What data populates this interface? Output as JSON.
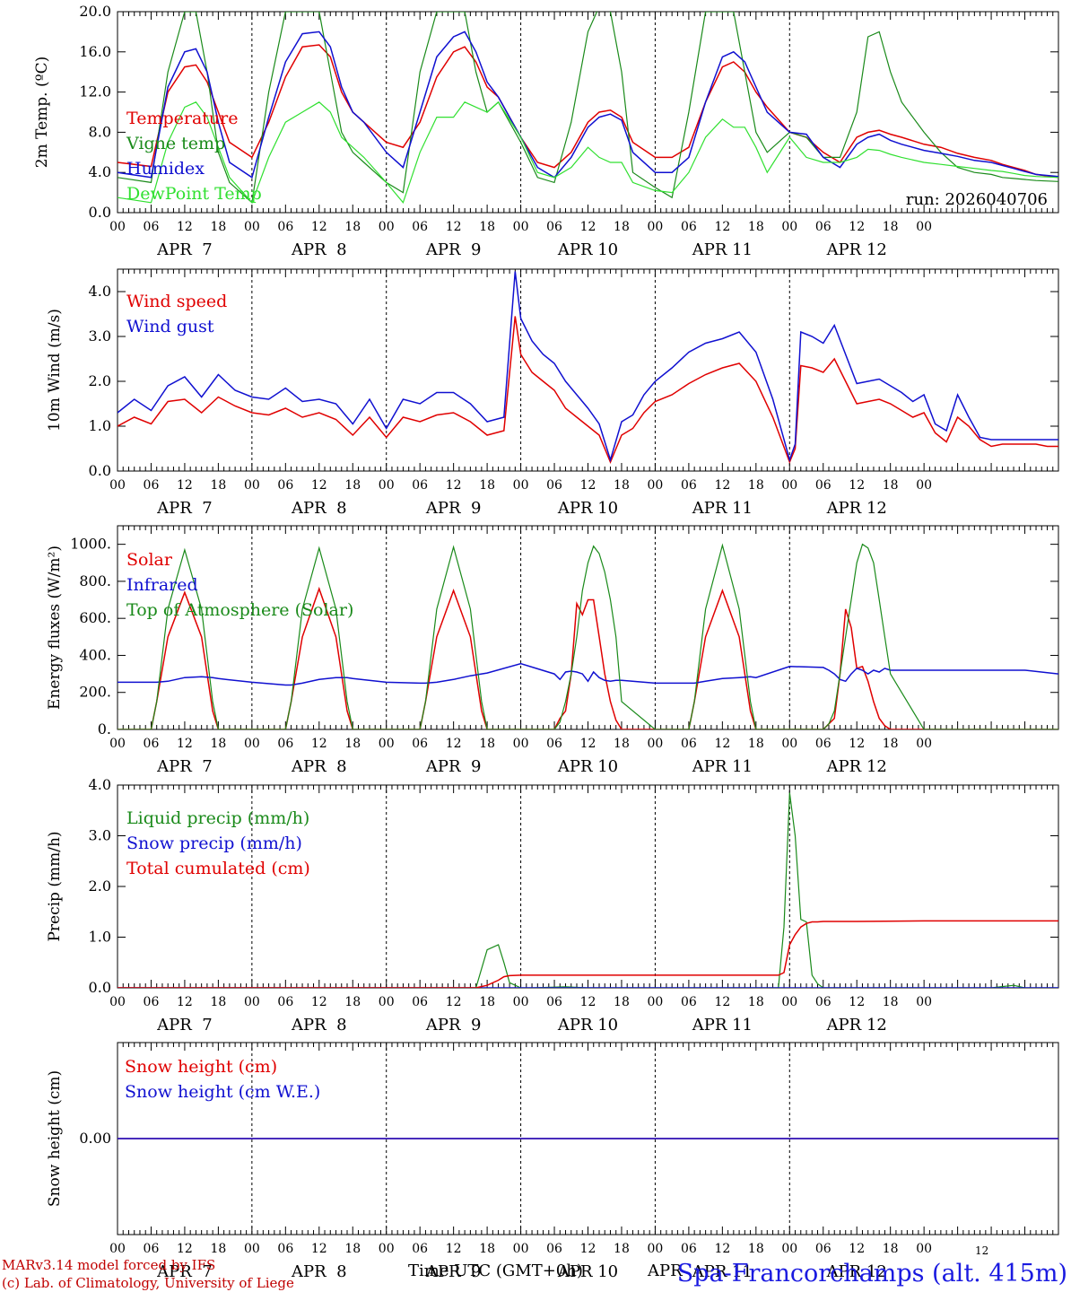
{
  "meta": {
    "run_label": "run: 2026040706",
    "footer_line1": "MARv3.14 model forced by IFS",
    "footer_line2": "(c) Lab. of Climatology, University of Liege",
    "xaxis_title": "Time UTC (GMT+0h)",
    "station": "Spa-Francorchamps (alt. 415m)",
    "stray_overlay_text": "APR",
    "stray_small_text": "12"
  },
  "colors": {
    "red": "#e00000",
    "green": "#1a8a1a",
    "blue": "#1010d0",
    "light_green": "#30e030"
  },
  "days": [
    "APR  7",
    "APR  8",
    "APR  9",
    "APR 10",
    "APR 11",
    "APR 12"
  ],
  "hour_ticks": [
    "00",
    "06",
    "12",
    "18",
    "00",
    "06",
    "12",
    "18",
    "00",
    "06",
    "12",
    "18",
    "00",
    "06",
    "12",
    "18",
    "00",
    "06",
    "12",
    "18",
    "00",
    "06",
    "12",
    "18",
    "00"
  ],
  "chart_data": [
    {
      "type": "line",
      "id": "temp",
      "ylabel": "2m Temp. (ºC)",
      "ylim": [
        0,
        20
      ],
      "yticks": [
        0,
        4,
        8,
        12,
        16,
        20
      ],
      "ytick_labels": [
        "0.0",
        "4.0",
        "8.0",
        "12.0",
        "16.0",
        "20.0"
      ],
      "x_hours": [
        0,
        6,
        9,
        12,
        14,
        16,
        18,
        20,
        24,
        27,
        30,
        33,
        36,
        38,
        40,
        42,
        44,
        48,
        51,
        54,
        57,
        60,
        62,
        64,
        66,
        68,
        72,
        75,
        78,
        81,
        84,
        86,
        88,
        90,
        92,
        96,
        99,
        102,
        105,
        108,
        110,
        112,
        114,
        116,
        120,
        123,
        126,
        129,
        132,
        134,
        136,
        138,
        140,
        144,
        147,
        150,
        153,
        156,
        158,
        160,
        162,
        164,
        168
      ],
      "series": [
        {
          "name": "Temperature",
          "color_key": "red",
          "values": [
            5,
            4.6,
            12,
            14.5,
            14.7,
            13,
            10,
            7,
            5.5,
            9,
            13.5,
            16.5,
            16.7,
            15.5,
            12,
            10,
            9,
            7,
            6.5,
            9,
            13.5,
            16,
            16.5,
            15,
            12.5,
            11.5,
            7.5,
            5,
            4.5,
            6,
            9,
            10,
            10.2,
            9.5,
            7,
            5.5,
            5.5,
            6.5,
            11,
            14.5,
            15,
            14,
            12,
            10.5,
            8,
            7.5,
            6,
            5,
            7.5,
            8,
            8.2,
            7.8,
            7.5,
            6.8,
            6.5,
            5.9,
            5.5,
            5.2,
            4.8,
            4.5,
            4.2,
            3.8,
            3.5
          ]
        },
        {
          "name": "Vigne temp",
          "color_key": "green",
          "values": [
            3.5,
            3,
            14,
            20,
            20,
            14,
            6,
            3,
            1,
            12,
            20,
            20,
            20,
            14,
            8,
            6,
            5,
            3,
            2,
            14,
            20,
            20,
            20,
            14,
            10,
            11,
            7,
            3.5,
            3,
            9,
            18,
            20.5,
            20,
            14,
            4,
            2.5,
            1.5,
            10,
            20,
            20,
            20,
            14,
            8,
            6,
            8,
            7.5,
            5.5,
            5.5,
            10,
            17.5,
            18,
            14,
            11,
            8,
            6,
            4.5,
            4,
            3.8,
            3.5,
            3.4,
            3.3,
            3.2,
            3.1
          ]
        },
        {
          "name": "Humidex",
          "color_key": "blue",
          "values": [
            4,
            3.5,
            12.5,
            16,
            16.3,
            14,
            9,
            5,
            3.5,
            9.5,
            15,
            17.8,
            18,
            16.5,
            12.5,
            10,
            9,
            6,
            4.5,
            10,
            15.5,
            17.5,
            18,
            16,
            13,
            11.5,
            7.5,
            4.5,
            3.5,
            5.5,
            8.5,
            9.5,
            9.8,
            9.2,
            6,
            4,
            4,
            5.5,
            11,
            15.5,
            16,
            15,
            12.5,
            10,
            8,
            7.8,
            5.5,
            4.5,
            6.8,
            7.5,
            7.8,
            7.2,
            6.8,
            6.2,
            5.9,
            5.6,
            5.2,
            5,
            4.7,
            4.4,
            4.1,
            3.8,
            3.6
          ]
        },
        {
          "name": "DewPoint Temp",
          "color_key": "light_green",
          "values": [
            1.5,
            1,
            7,
            10.5,
            11,
            9.5,
            6.5,
            3.5,
            1,
            5.5,
            9,
            10,
            11,
            10,
            7.5,
            6.5,
            5.5,
            3,
            1,
            6,
            9.5,
            9.5,
            11,
            10.5,
            10,
            11,
            7.5,
            4,
            3.5,
            4.5,
            6.5,
            5.5,
            5,
            5,
            3,
            2.2,
            2,
            4,
            7.5,
            9.3,
            8.5,
            8.5,
            6.5,
            4,
            7.5,
            5.5,
            5,
            5,
            5.5,
            6.3,
            6.2,
            5.8,
            5.5,
            5,
            4.8,
            4.6,
            4.4,
            4.2,
            4.1,
            3.9,
            3.7,
            3.6,
            3.5
          ]
        }
      ],
      "legend": [
        "Temperature",
        "Vigne temp",
        "Humidex",
        "DewPoint Temp"
      ]
    },
    {
      "type": "line",
      "id": "wind",
      "ylabel": "10m Wind (m/s)",
      "ylim": [
        0,
        4.5
      ],
      "yticks": [
        0,
        1,
        2,
        3,
        4
      ],
      "ytick_labels": [
        "0.0",
        "1.0",
        "2.0",
        "3.0",
        "4.0"
      ],
      "x_hours": [
        0,
        3,
        6,
        9,
        12,
        15,
        18,
        21,
        24,
        27,
        30,
        33,
        36,
        39,
        42,
        45,
        48,
        51,
        54,
        57,
        60,
        63,
        66,
        69,
        71,
        72,
        74,
        76,
        78,
        80,
        82,
        84,
        86,
        88,
        90,
        92,
        94,
        96,
        99,
        102,
        105,
        108,
        111,
        114,
        117,
        120,
        121,
        122,
        124,
        126,
        128,
        130,
        132,
        134,
        136,
        138,
        140,
        142,
        144,
        146,
        148,
        150,
        152,
        154,
        156,
        158,
        160,
        162,
        164,
        166,
        168
      ],
      "series": [
        {
          "name": "Wind speed",
          "color_key": "red",
          "values": [
            1,
            1.2,
            1.05,
            1.55,
            1.6,
            1.3,
            1.65,
            1.45,
            1.3,
            1.25,
            1.4,
            1.2,
            1.3,
            1.15,
            0.8,
            1.2,
            0.75,
            1.2,
            1.1,
            1.25,
            1.3,
            1.1,
            0.8,
            0.9,
            3.45,
            2.6,
            2.2,
            2,
            1.8,
            1.4,
            1.2,
            1,
            0.8,
            0.2,
            0.8,
            0.95,
            1.3,
            1.55,
            1.7,
            1.95,
            2.15,
            2.3,
            2.4,
            2,
            1.2,
            0.2,
            0.5,
            2.35,
            2.3,
            2.2,
            2.5,
            2,
            1.5,
            1.55,
            1.6,
            1.5,
            1.35,
            1.2,
            1.3,
            0.85,
            0.65,
            1.2,
            1.0,
            0.7,
            0.55,
            0.6,
            0.6,
            0.6,
            0.6,
            0.55,
            0.55
          ]
        },
        {
          "name": "Wind gust",
          "color_key": "blue",
          "values": [
            1.3,
            1.6,
            1.35,
            1.9,
            2.1,
            1.65,
            2.15,
            1.8,
            1.65,
            1.6,
            1.85,
            1.55,
            1.6,
            1.5,
            1.05,
            1.6,
            0.95,
            1.6,
            1.5,
            1.75,
            1.75,
            1.5,
            1.1,
            1.2,
            4.45,
            3.4,
            2.9,
            2.6,
            2.4,
            2,
            1.7,
            1.4,
            1.05,
            0.25,
            1.1,
            1.25,
            1.7,
            2,
            2.3,
            2.65,
            2.85,
            2.95,
            3.1,
            2.65,
            1.6,
            0.25,
            0.6,
            3.1,
            3,
            2.85,
            3.25,
            2.6,
            1.95,
            2,
            2.05,
            1.9,
            1.75,
            1.55,
            1.7,
            1.05,
            0.9,
            1.7,
            1.2,
            0.75,
            0.7,
            0.7,
            0.7,
            0.7,
            0.7,
            0.7,
            0.7
          ]
        }
      ],
      "legend": [
        "Wind speed",
        "Wind gust"
      ]
    },
    {
      "type": "line",
      "id": "energy",
      "ylabel": "Energy fluxes (W/m²)",
      "ylim": [
        0,
        1100
      ],
      "yticks": [
        0,
        200,
        400,
        600,
        800,
        1000
      ],
      "ytick_labels": [
        "0.",
        "200.",
        "400.",
        "600.",
        "800.",
        "1000."
      ],
      "x_hours": [
        0,
        6,
        7,
        9,
        12,
        15,
        17,
        18,
        24,
        30,
        31,
        33,
        36,
        39,
        41,
        42,
        48,
        54,
        55,
        57,
        60,
        63,
        65,
        66,
        72,
        78,
        79,
        80,
        81,
        82,
        83,
        84,
        85,
        86,
        87,
        88,
        89,
        90,
        96,
        102,
        103,
        105,
        108,
        111,
        113,
        114,
        120,
        126,
        127,
        128,
        129,
        130,
        131,
        132,
        133,
        134,
        135,
        136,
        137,
        138,
        144,
        150,
        151,
        153,
        156,
        159,
        161,
        162,
        168
      ],
      "series": [
        {
          "name": "Solar",
          "color_key": "red",
          "values": [
            0,
            0,
            150,
            500,
            740,
            500,
            100,
            0,
            0,
            0,
            150,
            500,
            760,
            500,
            100,
            0,
            0,
            0,
            150,
            500,
            750,
            500,
            100,
            0,
            0,
            0,
            60,
            100,
            300,
            680,
            620,
            700,
            700,
            500,
            300,
            150,
            50,
            0,
            0,
            0,
            150,
            500,
            750,
            500,
            100,
            0,
            0,
            0,
            30,
            60,
            300,
            650,
            550,
            330,
            340,
            260,
            150,
            60,
            20,
            0,
            0,
            0,
            0,
            0,
            0,
            0,
            0,
            0,
            0
          ]
        },
        {
          "name": "Infrared",
          "color_key": "blue",
          "values": [
            255,
            255,
            255,
            260,
            280,
            285,
            280,
            275,
            255,
            240,
            240,
            250,
            270,
            280,
            280,
            275,
            255,
            250,
            250,
            255,
            270,
            290,
            300,
            305,
            355,
            300,
            270,
            310,
            315,
            310,
            300,
            260,
            310,
            280,
            265,
            260,
            265,
            265,
            250,
            250,
            250,
            260,
            275,
            280,
            285,
            280,
            340,
            335,
            320,
            300,
            270,
            260,
            300,
            330,
            320,
            300,
            320,
            310,
            330,
            320,
            320,
            320,
            320,
            320,
            320,
            320,
            320,
            320,
            300
          ]
        },
        {
          "name": "Top of Atmosphere (Solar)",
          "color_key": "green",
          "values": [
            0,
            0,
            150,
            650,
            970,
            650,
            150,
            0,
            0,
            0,
            150,
            650,
            980,
            650,
            150,
            0,
            0,
            0,
            150,
            650,
            985,
            650,
            150,
            0,
            0,
            0,
            40,
            150,
            300,
            500,
            750,
            900,
            990,
            950,
            850,
            700,
            500,
            150,
            0,
            0,
            150,
            650,
            995,
            650,
            150,
            0,
            0,
            0,
            30,
            100,
            300,
            500,
            700,
            900,
            1000,
            980,
            900,
            700,
            500,
            300,
            0,
            0,
            0,
            0,
            0,
            0,
            0,
            0,
            0
          ]
        }
      ],
      "legend": [
        "Solar",
        "Infrared",
        "Top of Atmosphere (Solar)"
      ]
    },
    {
      "type": "line",
      "id": "precip",
      "ylabel": "Precip (mm/h)",
      "ylim": [
        0,
        4
      ],
      "yticks": [
        0,
        1,
        2,
        3,
        4
      ],
      "ytick_labels": [
        "0.0",
        "1.0",
        "2.0",
        "3.0",
        "4.0"
      ],
      "x_hours": [
        0,
        60,
        64,
        66,
        68,
        69,
        70,
        72,
        74,
        80,
        84,
        90,
        96,
        108,
        114,
        118,
        119,
        120,
        121,
        122,
        123,
        124,
        125,
        126,
        132,
        144,
        156,
        160,
        162,
        163,
        168
      ],
      "series": [
        {
          "name": "Liquid precip (mm/h)",
          "color_key": "green",
          "values": [
            0,
            0,
            0,
            0.75,
            0.85,
            0.5,
            0.1,
            0,
            0,
            0.02,
            0,
            0,
            0,
            0,
            0,
            0,
            1.2,
            3.85,
            3,
            1.35,
            1.3,
            0.25,
            0.08,
            0,
            0,
            0,
            0,
            0.05,
            0,
            0,
            0
          ]
        },
        {
          "name": "Snow precip (mm/h)",
          "color_key": "blue",
          "values": [
            0,
            0,
            0,
            0,
            0,
            0,
            0,
            0,
            0,
            0,
            0,
            0,
            0,
            0,
            0,
            0,
            0,
            0,
            0,
            0,
            0,
            0,
            0,
            0,
            0,
            0,
            0,
            0,
            0,
            0,
            0
          ]
        },
        {
          "name": "Total cumulated (cm)",
          "color_key": "red",
          "values": [
            0,
            0,
            0,
            0.05,
            0.15,
            0.22,
            0.24,
            0.25,
            0.25,
            0.25,
            0.25,
            0.25,
            0.25,
            0.25,
            0.25,
            0.25,
            0.3,
            0.85,
            1.05,
            1.2,
            1.27,
            1.3,
            1.3,
            1.31,
            1.31,
            1.32,
            1.32,
            1.32,
            1.32,
            1.32,
            1.32
          ]
        }
      ],
      "legend": [
        "Liquid precip (mm/h)",
        "Snow precip (mm/h)",
        "Total cumulated (cm)"
      ]
    },
    {
      "type": "line",
      "id": "snow",
      "ylabel": "Snow height (cm)",
      "ylim": [
        -1,
        1
      ],
      "yticks": [
        0
      ],
      "ytick_labels": [
        "0.00"
      ],
      "x_hours": [
        0,
        168
      ],
      "series": [
        {
          "name": "Snow height (cm)",
          "color_key": "red",
          "values": [
            0,
            0
          ]
        },
        {
          "name": "Snow height (cm W.E.)",
          "color_key": "blue",
          "values": [
            0,
            0
          ]
        }
      ],
      "legend": [
        "Snow height (cm)",
        "Snow height (cm W.E.)"
      ]
    }
  ]
}
